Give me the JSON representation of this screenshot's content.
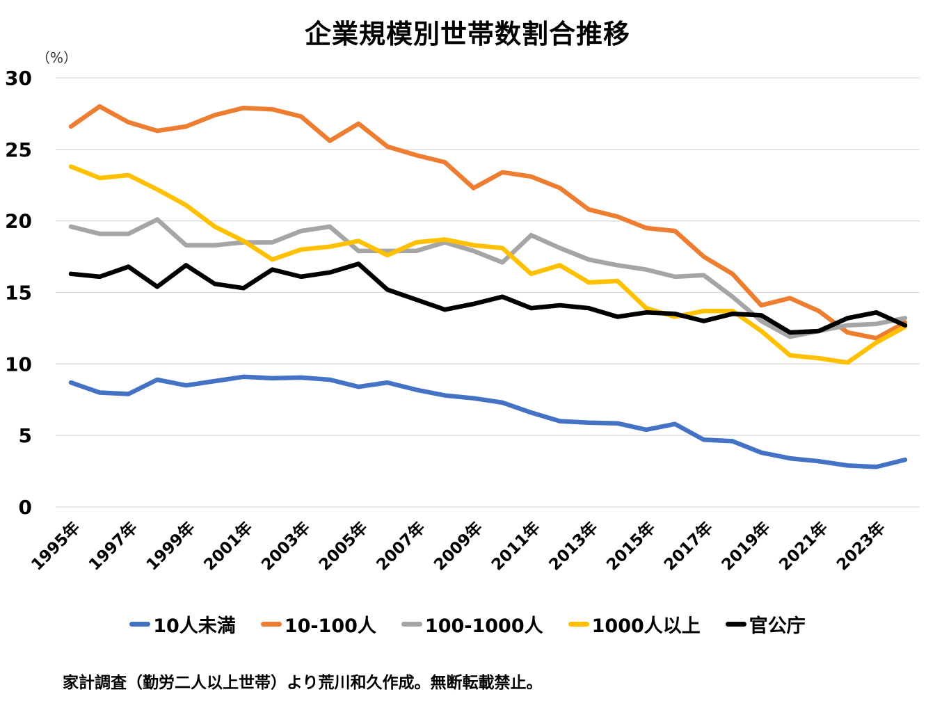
{
  "chart_data": {
    "type": "line",
    "title": "企業規模別世帯数割合推移",
    "ylabel": "（%）",
    "xlabel": "",
    "ylim": [
      0,
      30
    ],
    "yticks": [
      0,
      5,
      10,
      15,
      20,
      25,
      30
    ],
    "grid": true,
    "legend_position": "bottom",
    "x": [
      "1995年",
      "1996年",
      "1997年",
      "1998年",
      "1999年",
      "2000年",
      "2001年",
      "2002年",
      "2003年",
      "2004年",
      "2005年",
      "2006年",
      "2007年",
      "2008年",
      "2009年",
      "2010年",
      "2011年",
      "2012年",
      "2013年",
      "2014年",
      "2015年",
      "2016年",
      "2017年",
      "2018年",
      "2019年",
      "2020年",
      "2021年",
      "2022年",
      "2023年",
      "2024年"
    ],
    "xtick_labels": [
      "1995年",
      "1997年",
      "1999年",
      "2001年",
      "2003年",
      "2005年",
      "2007年",
      "2009年",
      "2011年",
      "2013年",
      "2015年",
      "2017年",
      "2019年",
      "2021年",
      "2023年"
    ],
    "series": [
      {
        "name": "10人未満",
        "color": "#4472C4",
        "values": [
          8.7,
          8.0,
          7.9,
          8.9,
          8.5,
          8.8,
          9.1,
          9.0,
          9.05,
          8.9,
          8.4,
          8.7,
          8.2,
          7.8,
          7.6,
          7.3,
          6.6,
          6.0,
          5.9,
          5.85,
          5.4,
          5.8,
          4.7,
          4.6,
          3.8,
          3.4,
          3.2,
          2.9,
          2.8,
          3.3
        ]
      },
      {
        "name": "10-100人",
        "color": "#ED7D31",
        "values": [
          26.6,
          28.0,
          26.9,
          26.3,
          26.6,
          27.4,
          27.9,
          27.8,
          27.3,
          25.6,
          26.8,
          25.2,
          24.6,
          24.1,
          22.3,
          23.4,
          23.1,
          22.3,
          20.8,
          20.3,
          19.5,
          19.3,
          17.5,
          16.3,
          14.1,
          14.6,
          13.7,
          12.2,
          11.8,
          12.9
        ]
      },
      {
        "name": "100-1000人",
        "color": "#A5A5A5",
        "values": [
          19.6,
          19.1,
          19.1,
          20.1,
          18.3,
          18.3,
          18.5,
          18.5,
          19.3,
          19.6,
          17.9,
          17.9,
          17.9,
          18.5,
          17.9,
          17.1,
          19.0,
          18.1,
          17.3,
          16.9,
          16.6,
          16.1,
          16.2,
          14.7,
          13.0,
          11.9,
          12.3,
          12.7,
          12.8,
          13.2
        ]
      },
      {
        "name": "1000人以上",
        "color": "#FFC000",
        "values": [
          23.8,
          23.0,
          23.2,
          22.2,
          21.1,
          19.6,
          18.6,
          17.3,
          18.0,
          18.2,
          18.6,
          17.6,
          18.5,
          18.7,
          18.3,
          18.1,
          16.3,
          16.9,
          15.7,
          15.8,
          13.9,
          13.3,
          13.7,
          13.7,
          12.3,
          10.6,
          10.4,
          10.1,
          11.5,
          12.6
        ]
      },
      {
        "name": "官公庁",
        "color": "#000000",
        "values": [
          16.3,
          16.1,
          16.8,
          15.4,
          16.9,
          15.6,
          15.3,
          16.6,
          16.1,
          16.4,
          17.0,
          15.2,
          14.5,
          13.8,
          14.2,
          14.7,
          13.9,
          14.1,
          13.9,
          13.3,
          13.6,
          13.5,
          13.0,
          13.5,
          13.4,
          12.2,
          12.3,
          13.2,
          13.6,
          12.7
        ]
      }
    ],
    "footnote": "家計調査（勤労二人以上世帯）より荒川和久作成。無断転載禁止。"
  }
}
